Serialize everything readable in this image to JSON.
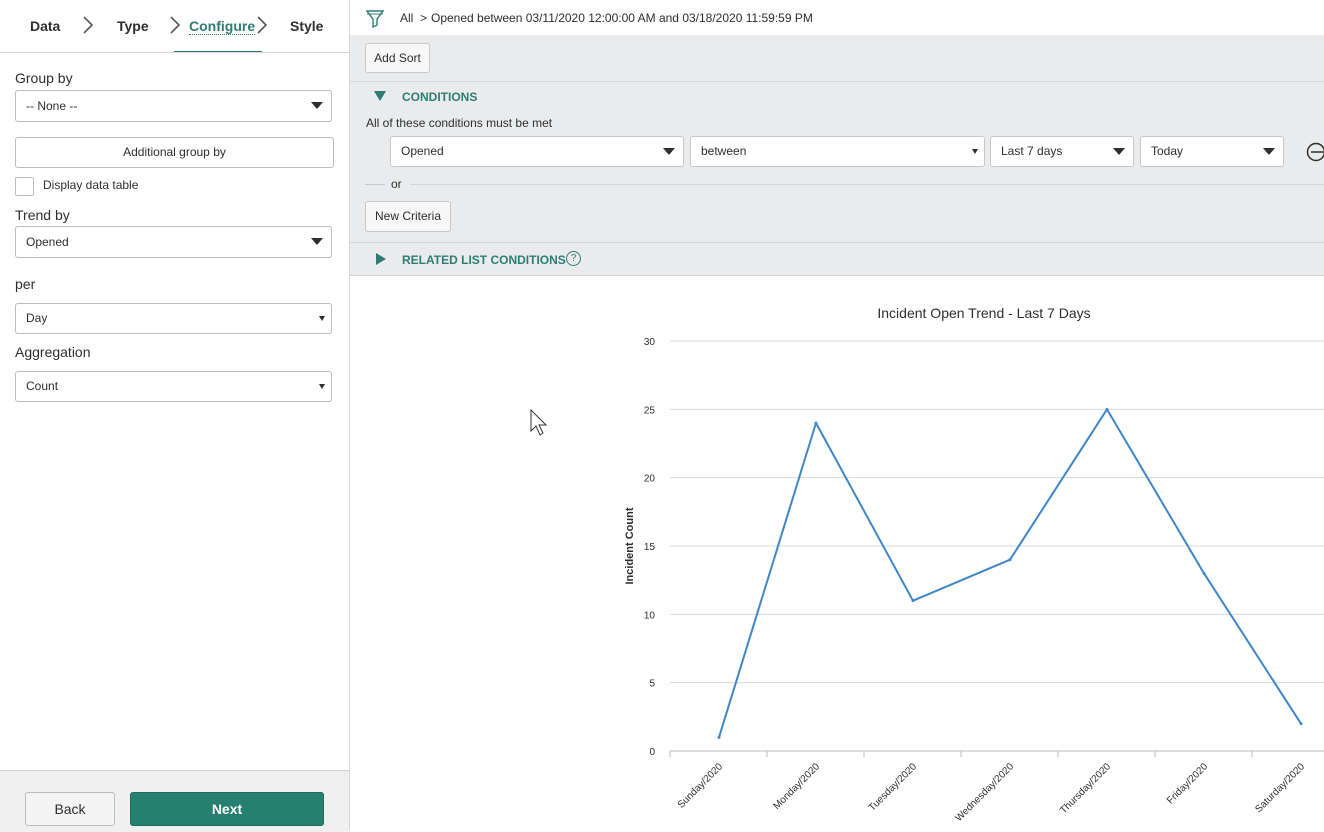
{
  "wizard": {
    "steps": [
      "Data",
      "Type",
      "Configure",
      "Style"
    ],
    "active_step": "Configure"
  },
  "config": {
    "group_by_label": "Group by",
    "group_by_value": "-- None --",
    "additional_group_by": "Additional group by",
    "display_data_table": "Display data table",
    "trend_by_label": "Trend by",
    "trend_by_value": "Opened",
    "per_label": "per",
    "per_value": "Day",
    "aggregation_label": "Aggregation",
    "aggregation_value": "Count"
  },
  "footer": {
    "back": "Back",
    "next": "Next"
  },
  "filter": {
    "all": "All",
    "separator": ">",
    "breadcrumb": "Opened between 03/11/2020 12:00:00 AM and 03/18/2020 11:59:59 PM"
  },
  "conditions": {
    "add_sort": "Add Sort",
    "header": "CONDITIONS",
    "all_met": "All of these conditions must be met",
    "field": "Opened",
    "operator": "between",
    "from": "Last 7 days",
    "to": "Today",
    "or": "or",
    "new_criteria": "New Criteria",
    "related": "RELATED LIST CONDITIONS",
    "help": "?"
  },
  "colors": {
    "accent": "#2f7c73",
    "next_button": "#27806f",
    "line": "#3f86c9"
  },
  "chart_data": {
    "type": "line",
    "title": "Incident Open Trend - Last 7 Days",
    "xlabel": "",
    "ylabel": "Incident Count",
    "categories": [
      "Sunday/2020",
      "Monday/2020",
      "Tuesday/2020",
      "Wednesday/2020",
      "Thursday/2020",
      "Friday/2020",
      "Saturday/2020"
    ],
    "values": [
      1,
      24,
      11,
      14,
      25,
      13,
      2
    ],
    "ylim": [
      0,
      30
    ],
    "yticks": [
      0,
      5,
      10,
      15,
      20,
      25,
      30
    ],
    "grid": true
  }
}
